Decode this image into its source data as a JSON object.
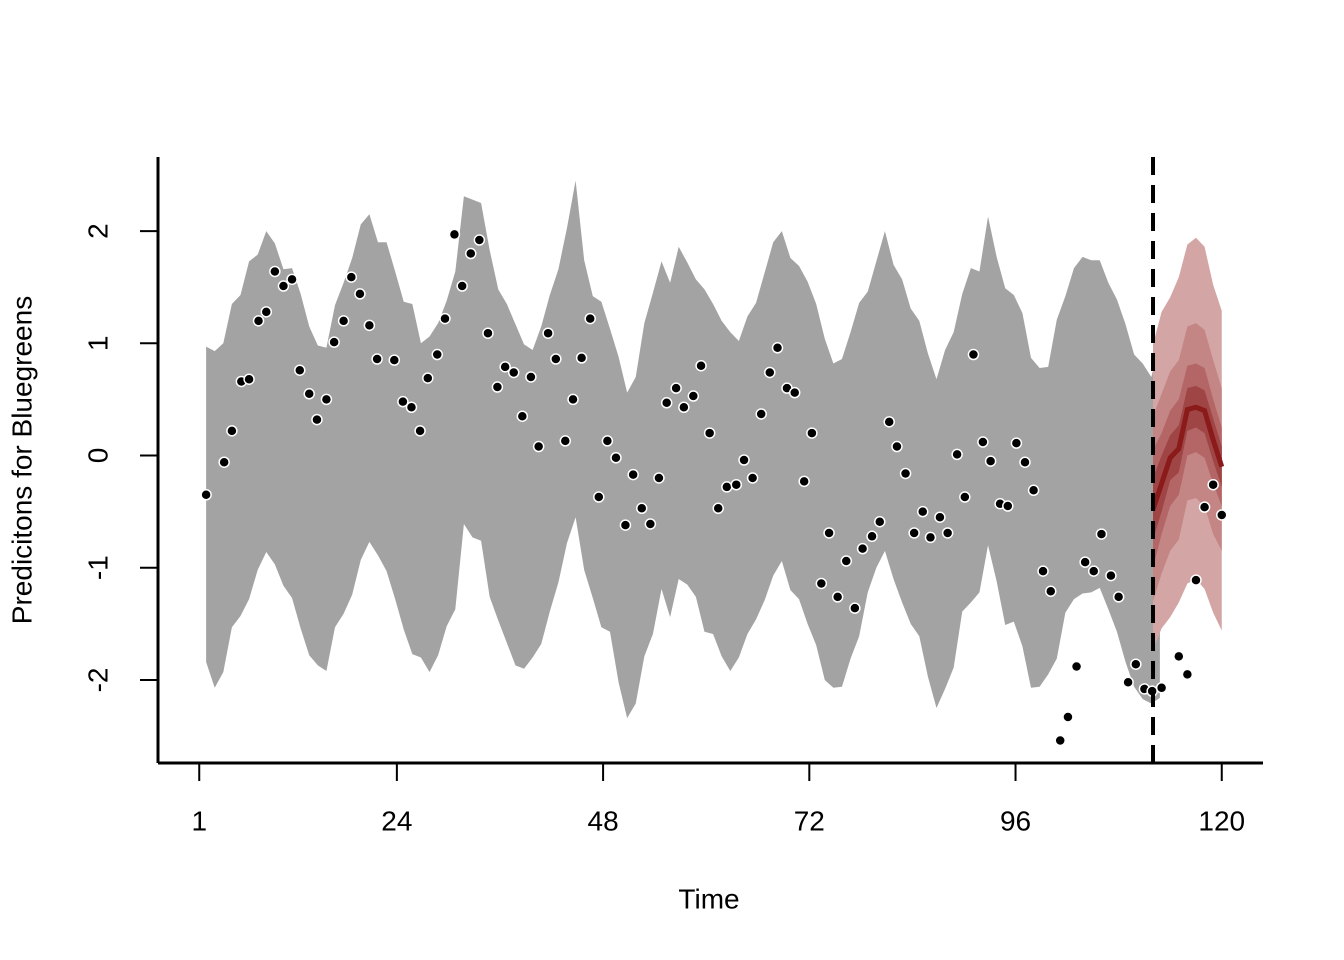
{
  "chart_data": {
    "type": "line",
    "xlabel": "Time",
    "ylabel": "Predicitons for Bluegreens",
    "xlim": [
      -3.8,
      124.8
    ],
    "ylim": [
      -2.74,
      2.66
    ],
    "xticks": [
      1,
      24,
      48,
      72,
      96,
      120
    ],
    "yticks": [
      -2,
      -1,
      0,
      1,
      2
    ],
    "forecast_start": 112,
    "interval": {
      "color": "#a3a3a3",
      "x": [
        1.8,
        2.8,
        3.8,
        4.8,
        5.8,
        6.8,
        7.8,
        8.8,
        9.8,
        10.8,
        11.8,
        12.8,
        13.8,
        14.8,
        15.8,
        16.8,
        17.8,
        18.8,
        19.8,
        20.8,
        21.8,
        22.8,
        23.8,
        24.8,
        25.8,
        26.8,
        27.8,
        28.8,
        29.8,
        30.8,
        31.8,
        32.8,
        33.8,
        34.8,
        35.8,
        36.8,
        37.8,
        38.8,
        39.8,
        40.8,
        41.8,
        42.8,
        43.8,
        44.8,
        45.8,
        46.8,
        47.8,
        48.8,
        49.8,
        50.8,
        51.8,
        52.8,
        53.8,
        54.8,
        55.8,
        56.8,
        57.8,
        58.8,
        59.8,
        60.8,
        61.8,
        62.8,
        63.8,
        64.8,
        65.8,
        66.8,
        67.8,
        68.8,
        69.8,
        70.8,
        71.8,
        72.8,
        73.8,
        74.8,
        75.8,
        76.8,
        77.8,
        78.8,
        79.8,
        80.8,
        81.8,
        82.8,
        83.8,
        84.8,
        85.8,
        86.8,
        87.8,
        88.8,
        89.8,
        90.8,
        91.8,
        92.8,
        93.8,
        94.8,
        95.8,
        96.8,
        97.8,
        98.8,
        99.8,
        100.8,
        101.8,
        102.8,
        103.8,
        104.8,
        105.8,
        106.8,
        107.8,
        108.8,
        109.8,
        110.8,
        111.8,
        112.8
      ],
      "upper": [
        0.97,
        0.93,
        1.0,
        1.35,
        1.43,
        1.73,
        1.79,
        2.0,
        1.89,
        1.66,
        1.67,
        1.44,
        1.15,
        0.98,
        0.96,
        1.34,
        1.54,
        1.76,
        2.06,
        2.15,
        1.9,
        1.9,
        1.64,
        1.37,
        1.35,
        1.0,
        1.06,
        1.18,
        1.38,
        1.64,
        2.31,
        2.28,
        2.25,
        1.83,
        1.48,
        1.35,
        1.17,
        0.99,
        0.94,
        1.15,
        1.43,
        1.66,
        2.03,
        2.45,
        1.74,
        1.42,
        1.37,
        1.13,
        0.88,
        0.56,
        0.7,
        1.18,
        1.45,
        1.73,
        1.54,
        1.86,
        1.72,
        1.57,
        1.48,
        1.35,
        1.2,
        1.1,
        1.02,
        1.24,
        1.36,
        1.63,
        1.9,
        2.0,
        1.76,
        1.69,
        1.55,
        1.35,
        1.04,
        0.82,
        0.86,
        1.1,
        1.36,
        1.46,
        1.73,
        2.0,
        1.7,
        1.57,
        1.31,
        1.2,
        0.91,
        0.68,
        0.94,
        1.1,
        1.44,
        1.67,
        1.64,
        2.13,
        1.77,
        1.49,
        1.43,
        1.27,
        0.87,
        0.78,
        0.79,
        1.21,
        1.42,
        1.67,
        1.77,
        1.74,
        1.74,
        1.54,
        1.39,
        1.17,
        0.9,
        0.82,
        0.7,
        0.99
      ],
      "lower": [
        -1.84,
        -2.07,
        -1.93,
        -1.53,
        -1.43,
        -1.28,
        -1.02,
        -0.86,
        -0.97,
        -1.16,
        -1.27,
        -1.54,
        -1.78,
        -1.87,
        -1.92,
        -1.53,
        -1.41,
        -1.24,
        -0.93,
        -0.77,
        -0.89,
        -1.03,
        -1.28,
        -1.55,
        -1.77,
        -1.8,
        -1.93,
        -1.78,
        -1.52,
        -1.37,
        -0.61,
        -0.73,
        -0.76,
        -1.26,
        -1.47,
        -1.67,
        -1.87,
        -1.9,
        -1.8,
        -1.68,
        -1.39,
        -1.13,
        -0.78,
        -0.55,
        -1.02,
        -1.27,
        -1.53,
        -1.57,
        -2.02,
        -2.34,
        -2.21,
        -1.79,
        -1.59,
        -1.19,
        -1.44,
        -1.1,
        -1.15,
        -1.26,
        -1.57,
        -1.59,
        -1.79,
        -1.92,
        -1.8,
        -1.59,
        -1.46,
        -1.29,
        -1.07,
        -0.94,
        -1.2,
        -1.28,
        -1.5,
        -1.69,
        -2.0,
        -2.07,
        -2.06,
        -1.81,
        -1.61,
        -1.22,
        -1.0,
        -0.85,
        -1.1,
        -1.31,
        -1.5,
        -1.61,
        -1.97,
        -2.25,
        -2.08,
        -1.89,
        -1.39,
        -1.31,
        -1.22,
        -0.8,
        -1.12,
        -1.51,
        -1.48,
        -1.7,
        -2.07,
        -2.06,
        -1.95,
        -1.81,
        -1.4,
        -1.28,
        -1.23,
        -1.22,
        -1.18,
        -1.37,
        -1.57,
        -1.84,
        -2.06,
        -2.17,
        -2.21,
        -2.16
      ]
    },
    "forecast": {
      "x": [
        112,
        113,
        114,
        115,
        116,
        117,
        118,
        119,
        120
      ],
      "median": [
        -0.48,
        -0.25,
        -0.02,
        0.06,
        0.41,
        0.43,
        0.4,
        0.14,
        -0.1
      ],
      "color": "#8b1a1a",
      "bands": [
        {
          "color": "#d4a5a5",
          "upper": [
            0.99,
            1.28,
            1.41,
            1.59,
            1.88,
            1.94,
            1.86,
            1.52,
            1.29
          ],
          "lower": [
            -1.73,
            -1.54,
            -1.44,
            -1.31,
            -1.14,
            -1.1,
            -1.19,
            -1.4,
            -1.56
          ]
        },
        {
          "color": "#c48585",
          "upper": [
            0.35,
            0.55,
            0.75,
            0.85,
            1.15,
            1.18,
            1.12,
            0.85,
            0.6
          ],
          "lower": [
            -1.3,
            -1.05,
            -0.85,
            -0.75,
            -0.4,
            -0.38,
            -0.45,
            -0.7,
            -0.85
          ]
        },
        {
          "color": "#b46666",
          "upper": [
            0.05,
            0.2,
            0.4,
            0.5,
            0.8,
            0.82,
            0.78,
            0.5,
            0.25
          ],
          "lower": [
            -1.0,
            -0.7,
            -0.45,
            -0.35,
            0.0,
            0.03,
            -0.02,
            -0.25,
            -0.45
          ]
        },
        {
          "color": "#a04545",
          "upper": [
            -0.2,
            0.0,
            0.18,
            0.27,
            0.6,
            0.62,
            0.58,
            0.33,
            0.08
          ],
          "lower": [
            -0.75,
            -0.5,
            -0.22,
            -0.15,
            0.22,
            0.25,
            0.2,
            -0.05,
            -0.28
          ]
        }
      ]
    },
    "observed": {
      "color": "#000000",
      "x": [
        1.8,
        3.9,
        4.8,
        5.9,
        6.8,
        7.9,
        8.8,
        9.8,
        10.8,
        11.8,
        12.7,
        13.8,
        14.7,
        15.8,
        16.7,
        17.8,
        18.7,
        19.7,
        20.8,
        21.7,
        23.7,
        24.7,
        25.7,
        26.7,
        27.6,
        28.7,
        29.6,
        30.7,
        31.6,
        32.6,
        33.6,
        34.6,
        35.7,
        36.6,
        37.6,
        38.6,
        39.6,
        40.5,
        41.6,
        42.5,
        43.6,
        44.5,
        45.5,
        46.5,
        47.5,
        48.5,
        49.5,
        50.6,
        51.5,
        52.5,
        53.5,
        54.5,
        55.4,
        56.5,
        57.4,
        58.5,
        59.4,
        60.4,
        61.4,
        62.4,
        63.5,
        64.4,
        65.4,
        66.4,
        67.4,
        68.3,
        69.4,
        70.3,
        71.4,
        72.3,
        73.4,
        74.3,
        75.3,
        76.3,
        77.3,
        78.2,
        79.3,
        80.2,
        81.3,
        82.2,
        83.2,
        84.2,
        85.2,
        86.1,
        87.2,
        88.1,
        89.2,
        90.1,
        91.1,
        92.2,
        93.1,
        94.2,
        95.1,
        96.1,
        97.1,
        98.1,
        99.2,
        100.1,
        101.2,
        102.1,
        103.1,
        104.1,
        105.1,
        106.0,
        107.1,
        108.0,
        109.1,
        110.0,
        111.0,
        111.9,
        113.0,
        115.0,
        116.0,
        117.0,
        118.0,
        119.0,
        120.0
      ],
      "values": [
        -0.35,
        -0.06,
        0.22,
        0.66,
        0.68,
        1.2,
        1.28,
        1.64,
        1.51,
        1.57,
        0.76,
        0.55,
        0.32,
        0.5,
        1.01,
        1.2,
        1.59,
        1.44,
        1.16,
        0.86,
        0.85,
        0.48,
        0.43,
        0.22,
        0.69,
        0.9,
        1.22,
        1.97,
        1.51,
        1.8,
        1.92,
        1.09,
        0.61,
        0.79,
        0.74,
        0.35,
        0.7,
        0.08,
        1.09,
        0.86,
        0.13,
        0.5,
        0.87,
        1.22,
        -0.37,
        0.13,
        -0.02,
        -0.62,
        -0.17,
        -0.47,
        -0.61,
        -0.2,
        0.47,
        0.6,
        0.43,
        0.53,
        0.8,
        0.2,
        -0.47,
        -0.28,
        -0.26,
        -0.04,
        -0.2,
        0.37,
        0.74,
        0.96,
        0.6,
        0.56,
        -0.23,
        0.2,
        -1.14,
        -0.69,
        -1.26,
        -0.94,
        -1.36,
        -0.83,
        -0.72,
        -0.59,
        0.3,
        0.08,
        -0.16,
        -0.69,
        -0.5,
        -0.73,
        -0.55,
        -0.69,
        0.01,
        -0.37,
        0.9,
        0.12,
        -0.05,
        -0.43,
        -0.45,
        0.11,
        -0.06,
        -0.31,
        -1.03,
        -1.21,
        -2.54,
        -2.33,
        -1.88,
        -0.95,
        -1.03,
        -0.7,
        -1.07,
        -1.26,
        -2.02,
        -1.86,
        -2.08,
        -2.1,
        -2.07,
        -1.79,
        -1.95,
        -1.11,
        -0.46,
        -0.26,
        -0.53
      ]
    }
  }
}
